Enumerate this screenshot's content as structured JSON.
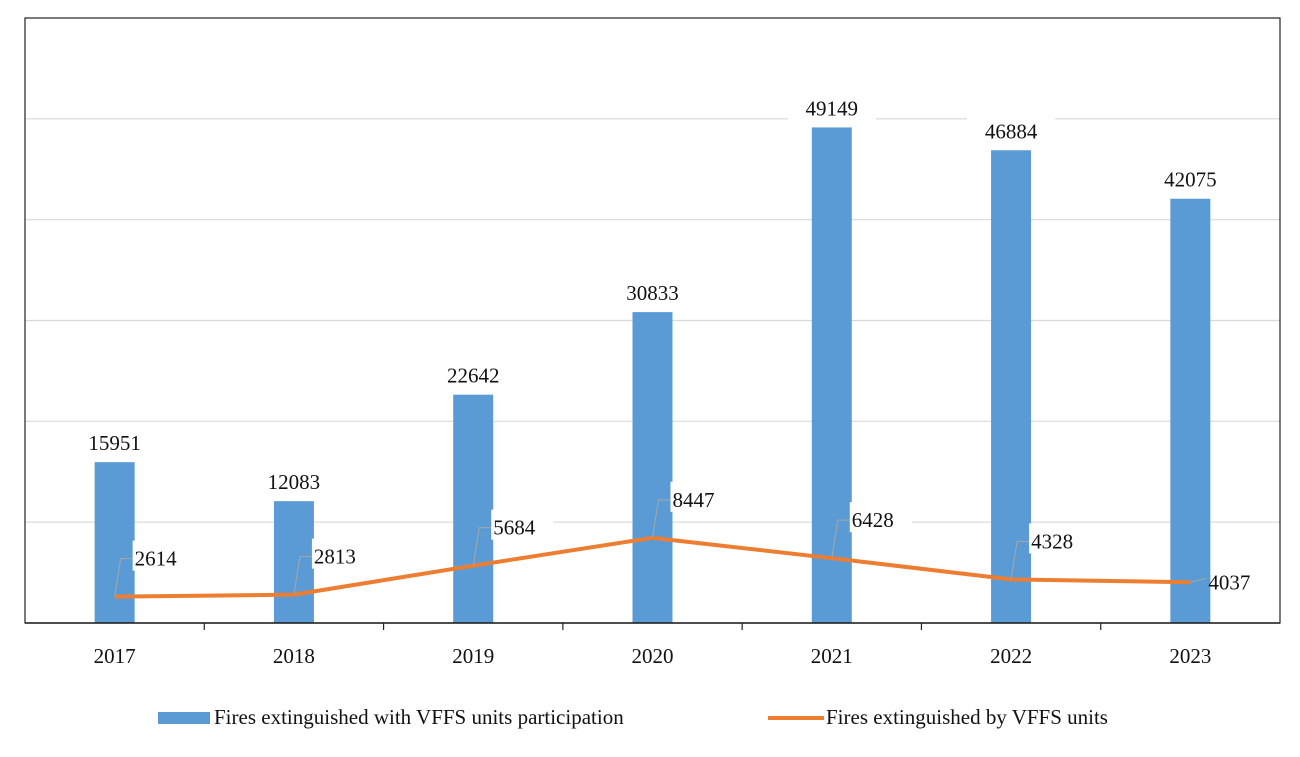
{
  "chart_data": {
    "type": "bar+line",
    "title": "",
    "xlabel": "",
    "ylabel": "",
    "ylim": [
      0,
      60000
    ],
    "grid": true,
    "legend_position": "bottom",
    "categories": [
      "2017",
      "2018",
      "2019",
      "2020",
      "2021",
      "2022",
      "2023"
    ],
    "series": [
      {
        "name": "Fires extinguished with VFFS units participation",
        "type": "bar",
        "color": "#5b9bd5",
        "values": [
          15951,
          12083,
          22642,
          30833,
          49149,
          46884,
          42075
        ]
      },
      {
        "name": "Fires extinguished by VFFS units",
        "type": "line",
        "color": "#ed7d31",
        "values": [
          2614,
          2813,
          5684,
          8447,
          6428,
          4328,
          4037
        ]
      }
    ]
  }
}
